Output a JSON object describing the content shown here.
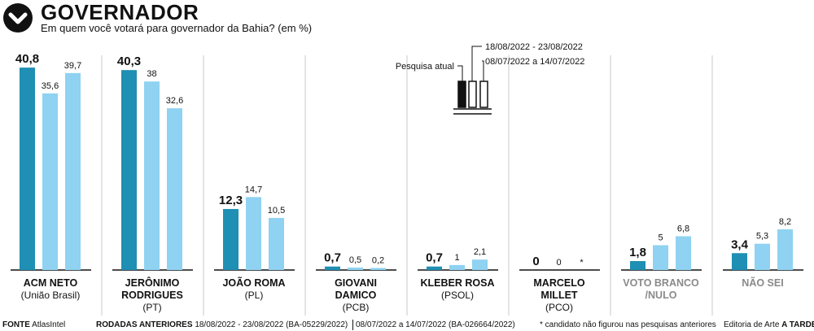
{
  "header": {
    "title": "GOVERNADOR",
    "subtitle": "Em quem você votará para governador da Bahia? (em %)",
    "icon": "chevron-down-circle-icon"
  },
  "legend": {
    "current_label": "Pesquisa atual",
    "round1_label": "18/08/2022 - 23/08/2022",
    "round2_label": "08/07/2022 a 14/07/2022"
  },
  "colors": {
    "current": "#1f8fb3",
    "previous": "#8fd2f1",
    "muted_text": "#8a8a8a",
    "divider": "#c8c8c8"
  },
  "chart_data": {
    "type": "bar",
    "title": "GOVERNADOR",
    "subtitle": "Em quem você votará para governador da Bahia? (em %)",
    "series": [
      {
        "name": "Pesquisa atual"
      },
      {
        "name": "18/08/2022 - 23/08/2022"
      },
      {
        "name": "08/07/2022 a 14/07/2022"
      }
    ],
    "ylim": [
      0,
      45
    ],
    "grid": false,
    "legend_position": "top-center",
    "candidates": [
      {
        "name_lines": [
          "ACM NETO"
        ],
        "party": "(União Brasil)",
        "muted": false,
        "values": [
          40.8,
          35.6,
          39.7
        ],
        "labels": [
          "40,8",
          "35,6",
          "39,7"
        ]
      },
      {
        "name_lines": [
          "JERÔNIMO",
          "RODRIGUES"
        ],
        "party": "(PT)",
        "muted": false,
        "values": [
          40.3,
          38,
          32.6
        ],
        "labels": [
          "40,3",
          "38",
          "32,6"
        ]
      },
      {
        "name_lines": [
          "JOÃO ROMA"
        ],
        "party": "(PL)",
        "muted": false,
        "values": [
          12.3,
          14.7,
          10.5
        ],
        "labels": [
          "12,3",
          "14,7",
          "10,5"
        ]
      },
      {
        "name_lines": [
          "GIOVANI",
          "DAMICO"
        ],
        "party": "(PCB)",
        "muted": false,
        "values": [
          0.7,
          0.5,
          0.2
        ],
        "labels": [
          "0,7",
          "0,5",
          "0,2"
        ]
      },
      {
        "name_lines": [
          "KLEBER ROSA"
        ],
        "party": "(PSOL)",
        "muted": false,
        "values": [
          0.7,
          1,
          2.1
        ],
        "labels": [
          "0,7",
          "1",
          "2,1"
        ]
      },
      {
        "name_lines": [
          "MARCELO",
          "MILLET"
        ],
        "party": "(PCO)",
        "muted": false,
        "values": [
          0,
          0,
          null
        ],
        "labels": [
          "0",
          "0",
          "*"
        ]
      },
      {
        "name_lines": [
          "VOTO BRANCO",
          "/NULO"
        ],
        "party": "",
        "muted": true,
        "values": [
          1.8,
          5,
          6.8
        ],
        "labels": [
          "1,8",
          "5",
          "6,8"
        ]
      },
      {
        "name_lines": [
          "NÃO SEI"
        ],
        "party": "",
        "muted": true,
        "values": [
          3.4,
          5.3,
          8.2
        ],
        "labels": [
          "3,4",
          "5,3",
          "8,2"
        ]
      }
    ]
  },
  "footer": {
    "source_label": "FONTE",
    "source_value": "AtlasIntel",
    "rounds_label": "RODADAS ANTERIORES",
    "round1": "18/08/2022 - 23/08/2022 (BA-05229/2022)",
    "round2": "08/07/2022 a 14/07/2022 (BA-026664/2022)",
    "note": "* candidato não figurou nas pesquisas anteriores",
    "credit_prefix": "Editoria de Arte",
    "credit_name": "A TARDE"
  }
}
